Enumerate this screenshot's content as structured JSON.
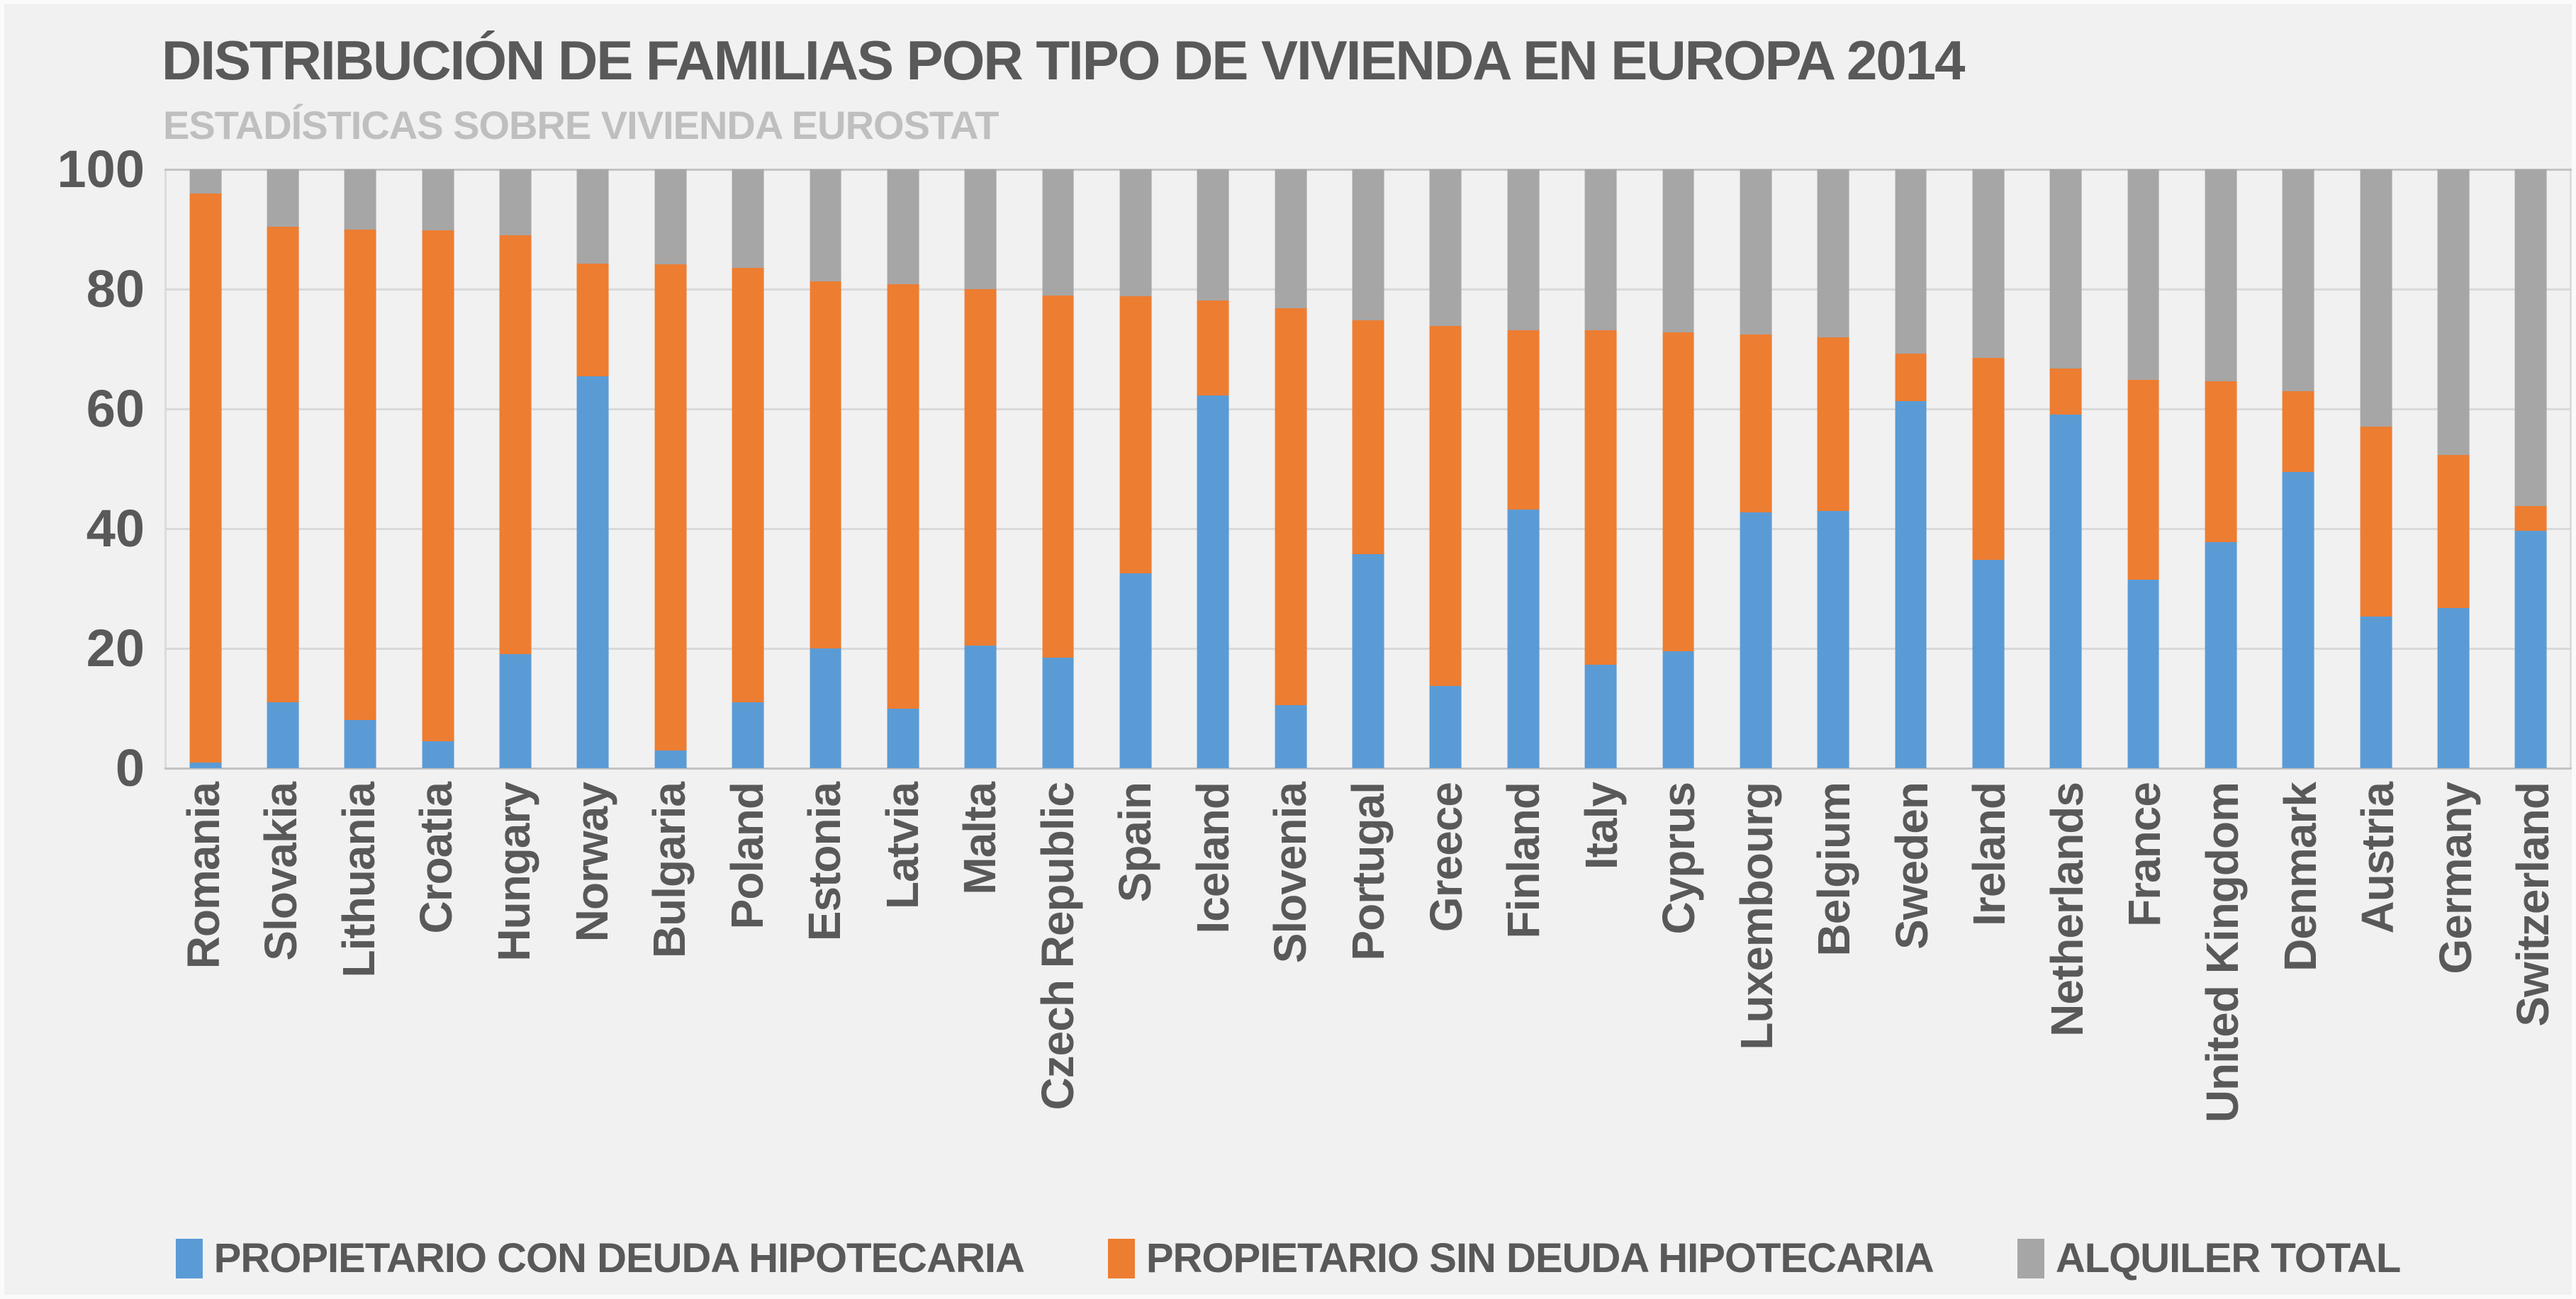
{
  "title": "DISTRIBUCIÓN DE FAMILIAS POR TIPO DE VIVIENDA EN EUROPA 2014",
  "subtitle": "ESTADÍSTICAS SOBRE VIVIENDA EUROSTAT",
  "colors": {
    "con_deuda": "#5b9bd5",
    "sin_deuda": "#ed7d31",
    "alquiler": "#a6a6a6",
    "title_text": "#595959",
    "subtitle_text": "#bfbfbf",
    "axis_text": "#595959",
    "gridline": "#d9d9d9",
    "background": "#f1f1f2"
  },
  "chart_data": {
    "type": "bar",
    "stacked": true,
    "title": "DISTRIBUCIÓN DE FAMILIAS POR TIPO DE VIVIENDA EN EUROPA 2014",
    "subtitle": "ESTADÍSTICAS SOBRE VIVIENDA EUROSTAT",
    "xlabel": "",
    "ylabel": "",
    "ylim": [
      0,
      100
    ],
    "yticks": [
      0,
      20,
      40,
      60,
      80,
      100
    ],
    "grid": true,
    "legend_position": "bottom",
    "categories": [
      "Romania",
      "Slovakia",
      "Lithuania",
      "Croatia",
      "Hungary",
      "Norway",
      "Bulgaria",
      "Poland",
      "Estonia",
      "Latvia",
      "Malta",
      "Czech Republic",
      "Spain",
      "Iceland",
      "Slovenia",
      "Portugal",
      "Greece",
      "Finland",
      "Italy",
      "Cyprus",
      "Luxembourg",
      "Belgium",
      "Sweden",
      "Ireland",
      "Netherlands",
      "France",
      "United Kingdom",
      "Denmark",
      "Austria",
      "Germany",
      "Switzerland"
    ],
    "series": [
      {
        "name": "PROPIETARIO CON DEUDA HIPOTECARIA",
        "color": "#5b9bd5",
        "values": [
          1,
          11,
          8,
          4.5,
          19,
          65.5,
          3,
          11,
          20,
          10,
          20.5,
          18.5,
          32.5,
          62.3,
          10.5,
          35.8,
          13.7,
          43.2,
          17.3,
          19.5,
          42.7,
          43,
          61.3,
          34.8,
          59,
          31.5,
          37.7,
          49.5,
          25.3,
          26.8,
          39.7
        ]
      },
      {
        "name": "PROPIETARIO SIN DEUDA HIPOTECARIA",
        "color": "#ed7d31",
        "values": [
          95,
          79.4,
          82,
          85.3,
          70,
          18.8,
          81.2,
          72.5,
          61.3,
          70.8,
          59.5,
          60.4,
          46.3,
          15.8,
          66.3,
          39,
          60.2,
          29.9,
          55.8,
          53.3,
          29.7,
          28.9,
          7.9,
          33.7,
          7.8,
          33.4,
          26.9,
          13.5,
          31.7,
          25.5,
          4.1
        ]
      },
      {
        "name": "ALQUILER TOTAL",
        "color": "#a6a6a6",
        "values": [
          4,
          9.6,
          10,
          10.2,
          11,
          15.7,
          15.8,
          16.5,
          18.7,
          19.2,
          20,
          21.1,
          21.2,
          21.9,
          23.2,
          25.2,
          26.1,
          26.9,
          26.9,
          27.2,
          27.6,
          28.1,
          30.8,
          31.5,
          33.2,
          35.1,
          35.4,
          37,
          43,
          47.7,
          56.2
        ]
      }
    ]
  },
  "legend": {
    "items": [
      {
        "label": "PROPIETARIO CON DEUDA HIPOTECARIA",
        "color": "#5b9bd5"
      },
      {
        "label": "PROPIETARIO SIN DEUDA HIPOTECARIA",
        "color": "#ed7d31"
      },
      {
        "label": "ALQUILER TOTAL",
        "color": "#a6a6a6"
      }
    ]
  }
}
